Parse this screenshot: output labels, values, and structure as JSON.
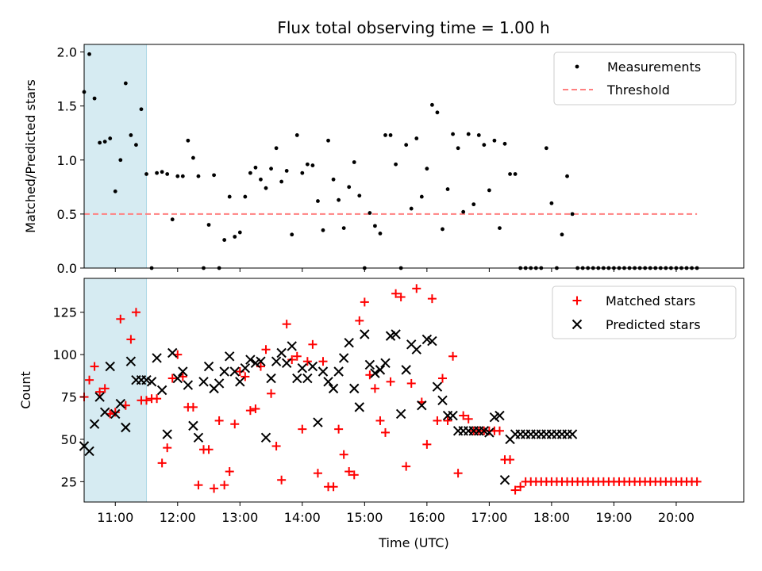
{
  "title": "Flux total observing time = 1.00 h",
  "colors": {
    "measurement": "#000000",
    "threshold": "#ff8080",
    "matched": "#ff0000",
    "predicted": "#000000",
    "highlight": "#add8e6"
  },
  "chart_data": [
    {
      "type": "scatter",
      "ylabel": "Matched/Predicted stars",
      "xlim": [
        "10:30",
        "21:05"
      ],
      "ylim": [
        0,
        2.07
      ],
      "yticks": [
        "0.0",
        "0.5",
        "1.0",
        "1.5",
        "2.0"
      ],
      "highlight_span": [
        "10:30",
        "11:30"
      ],
      "threshold": 0.5,
      "threshold_range": [
        "10:30",
        "20:20"
      ],
      "legend": {
        "position": "top-right",
        "entries": [
          "Measurements",
          "Threshold"
        ]
      },
      "series": [
        {
          "name": "Measurements",
          "x": [
            "10:30",
            "10:35",
            "10:40",
            "10:45",
            "10:50",
            "10:55",
            "11:00",
            "11:05",
            "11:10",
            "11:15",
            "11:20",
            "11:25",
            "11:30",
            "11:35",
            "11:40",
            "11:45",
            "11:50",
            "11:55",
            "12:00",
            "12:05",
            "12:10",
            "12:15",
            "12:20",
            "12:25",
            "12:30",
            "12:35",
            "12:40",
            "12:45",
            "12:50",
            "12:55",
            "13:00",
            "13:05",
            "13:10",
            "13:15",
            "13:20",
            "13:25",
            "13:30",
            "13:35",
            "13:40",
            "13:45",
            "13:50",
            "13:55",
            "14:00",
            "14:05",
            "14:10",
            "14:15",
            "14:20",
            "14:25",
            "14:30",
            "14:35",
            "14:40",
            "14:45",
            "14:50",
            "14:55",
            "15:00",
            "15:05",
            "15:10",
            "15:15",
            "15:20",
            "15:25",
            "15:30",
            "15:35",
            "15:40",
            "15:45",
            "15:50",
            "15:55",
            "16:00",
            "16:05",
            "16:10",
            "16:15",
            "16:20",
            "16:25",
            "16:30",
            "16:35",
            "16:40",
            "16:45",
            "16:50",
            "16:55",
            "17:00",
            "17:05",
            "17:10",
            "17:15",
            "17:20",
            "17:25",
            "17:30",
            "17:35",
            "17:40",
            "17:45",
            "17:50",
            "17:55",
            "18:00",
            "18:05",
            "18:10",
            "18:15",
            "18:20",
            "18:25",
            "18:30",
            "18:35",
            "18:40",
            "18:45",
            "18:50",
            "18:55",
            "19:00",
            "19:05",
            "19:10",
            "19:15",
            "19:20",
            "19:25",
            "19:30",
            "19:35",
            "19:40",
            "19:45",
            "19:50",
            "19:55",
            "20:00",
            "20:05",
            "20:10",
            "20:15",
            "20:20"
          ],
          "y": [
            1.63,
            1.98,
            1.57,
            1.16,
            1.17,
            1.2,
            0.71,
            1.0,
            1.71,
            1.23,
            1.14,
            1.47,
            0.87,
            0.0,
            0.88,
            0.89,
            0.87,
            0.45,
            0.85,
            0.85,
            1.18,
            1.02,
            0.85,
            0.0,
            0.4,
            0.86,
            0.0,
            0.26,
            0.66,
            0.29,
            0.33,
            0.66,
            0.88,
            0.93,
            0.82,
            0.74,
            0.92,
            1.11,
            0.8,
            0.9,
            0.31,
            1.23,
            0.88,
            0.96,
            0.95,
            0.62,
            0.35,
            1.18,
            0.82,
            0.63,
            0.37,
            0.75,
            0.98,
            0.67,
            0.0,
            0.51,
            0.39,
            0.32,
            1.23,
            1.23,
            0.96,
            0.0,
            1.14,
            0.55,
            1.2,
            0.66,
            0.92,
            1.51,
            1.44,
            0.36,
            0.73,
            1.24,
            1.11,
            0.52,
            1.24,
            0.59,
            1.23,
            1.14,
            0.72,
            1.18,
            0.37,
            1.15,
            0.87,
            0.87,
            0.0,
            0.0,
            0.0,
            0.0,
            0.0,
            1.11,
            0.6,
            0.0,
            0.31,
            0.85,
            0.5,
            0.0,
            0.0,
            0.0,
            0.0,
            0.0,
            0.0,
            0.0,
            0.0,
            0.0,
            0.0,
            0.0,
            0.0,
            0.0,
            0.0,
            0.0,
            0.0,
            0.0,
            0.0,
            0.0,
            0.0,
            0.0,
            0.0,
            0.0,
            0.0
          ]
        },
        {
          "name": "Threshold",
          "x": [
            "10:30",
            "20:20"
          ],
          "y": [
            0.5,
            0.5
          ]
        }
      ]
    },
    {
      "type": "scatter",
      "ylabel": "Count",
      "xlabel": "Time (UTC)",
      "xlim": [
        "10:30",
        "21:05"
      ],
      "ylim": [
        13,
        145
      ],
      "yticks": [
        "25",
        "50",
        "75",
        "100",
        "125"
      ],
      "xticks": [
        "11:00",
        "12:00",
        "13:00",
        "14:00",
        "15:00",
        "16:00",
        "17:00",
        "18:00",
        "19:00",
        "20:00"
      ],
      "highlight_span": [
        "10:30",
        "11:30"
      ],
      "legend": {
        "position": "top-right",
        "entries": [
          "Matched stars",
          "Predicted stars"
        ]
      },
      "series": [
        {
          "name": "Matched stars",
          "x": [
            "10:30",
            "10:35",
            "10:40",
            "10:45",
            "10:50",
            "10:55",
            "11:00",
            "11:05",
            "11:10",
            "11:15",
            "11:20",
            "11:25",
            "11:30",
            "11:35",
            "11:40",
            "11:45",
            "11:50",
            "11:55",
            "12:00",
            "12:05",
            "12:10",
            "12:15",
            "12:20",
            "12:25",
            "12:30",
            "12:35",
            "12:40",
            "12:45",
            "12:50",
            "12:55",
            "13:00",
            "13:05",
            "13:10",
            "13:15",
            "13:20",
            "13:25",
            "13:30",
            "13:35",
            "13:40",
            "13:45",
            "13:50",
            "13:55",
            "14:00",
            "14:05",
            "14:10",
            "14:15",
            "14:20",
            "14:25",
            "14:30",
            "14:35",
            "14:40",
            "14:45",
            "14:50",
            "14:55",
            "15:00",
            "15:05",
            "15:10",
            "15:15",
            "15:20",
            "15:25",
            "15:30",
            "15:35",
            "15:40",
            "15:45",
            "15:50",
            "15:55",
            "16:00",
            "16:05",
            "16:10",
            "16:15",
            "16:20",
            "16:25",
            "16:30",
            "16:35",
            "16:40",
            "16:45",
            "16:50",
            "16:55",
            "17:00",
            "17:05",
            "17:10",
            "17:15",
            "17:20",
            "17:25",
            "17:30",
            "17:35",
            "17:40",
            "17:45",
            "17:50",
            "17:55",
            "18:00",
            "18:05",
            "18:10",
            "18:15",
            "18:20",
            "18:25",
            "18:30",
            "18:35",
            "18:40",
            "18:45",
            "18:50",
            "18:55",
            "19:00",
            "19:05",
            "19:10",
            "19:15",
            "19:20",
            "19:25",
            "19:30",
            "19:35",
            "19:40",
            "19:45",
            "19:50",
            "19:55",
            "20:00",
            "20:05",
            "20:10",
            "20:15",
            "20:20"
          ],
          "y": [
            75,
            85,
            93,
            78,
            80,
            65,
            66,
            121,
            70,
            109,
            125,
            73,
            73,
            74,
            74,
            36,
            45,
            86,
            100,
            87,
            69,
            69,
            23,
            44,
            44,
            21,
            61,
            23,
            31,
            59,
            90,
            87,
            67,
            68,
            93,
            103,
            77,
            46,
            26,
            118,
            97,
            99,
            56,
            96,
            106,
            30,
            96,
            22,
            22,
            56,
            41,
            31,
            29,
            120,
            131,
            88,
            80,
            61,
            54,
            84,
            136,
            134,
            34,
            83,
            139,
            72,
            47,
            133,
            61,
            86,
            61,
            99,
            30,
            64,
            62,
            55,
            55,
            55,
            55,
            55,
            55,
            38,
            38,
            20,
            22,
            25,
            25,
            25,
            25,
            25,
            25,
            25,
            25,
            25,
            25,
            25,
            25,
            25,
            25,
            25,
            25,
            25,
            25,
            25,
            25,
            25,
            25,
            25,
            25,
            25,
            25,
            25,
            25,
            25,
            25,
            25,
            25,
            25,
            25
          ]
        },
        {
          "name": "Predicted stars",
          "x": [
            "10:30",
            "10:35",
            "10:40",
            "10:45",
            "10:50",
            "10:55",
            "11:00",
            "11:05",
            "11:10",
            "11:15",
            "11:20",
            "11:25",
            "11:30",
            "11:35",
            "11:40",
            "11:45",
            "11:50",
            "11:55",
            "12:00",
            "12:05",
            "12:10",
            "12:15",
            "12:20",
            "12:25",
            "12:30",
            "12:35",
            "12:40",
            "12:45",
            "12:50",
            "12:55",
            "13:00",
            "13:05",
            "13:10",
            "13:15",
            "13:20",
            "13:25",
            "13:30",
            "13:35",
            "13:40",
            "13:45",
            "13:50",
            "13:55",
            "14:00",
            "14:05",
            "14:10",
            "14:15",
            "14:20",
            "14:25",
            "14:30",
            "14:35",
            "14:40",
            "14:45",
            "14:50",
            "14:55",
            "15:00",
            "15:05",
            "15:10",
            "15:15",
            "15:20",
            "15:25",
            "15:30",
            "15:35",
            "15:40",
            "15:45",
            "15:50",
            "15:55",
            "16:00",
            "16:05",
            "16:10",
            "16:15",
            "16:20",
            "16:25",
            "16:30",
            "16:35",
            "16:40",
            "16:45",
            "16:50",
            "16:55",
            "17:00",
            "17:05",
            "17:10",
            "17:15",
            "17:20",
            "17:25",
            "17:30",
            "17:35",
            "17:40",
            "17:45",
            "17:50",
            "17:55",
            "18:00",
            "18:05",
            "18:10",
            "18:15",
            "18:20"
          ],
          "y": [
            46,
            43,
            59,
            75,
            66,
            93,
            65,
            71,
            57,
            96,
            85,
            85,
            85,
            84,
            98,
            79,
            53,
            101,
            86,
            90,
            82,
            58,
            51,
            84,
            93,
            80,
            83,
            90,
            99,
            90,
            84,
            92,
            97,
            95,
            96,
            51,
            86,
            96,
            101,
            95,
            105,
            86,
            92,
            86,
            93,
            60,
            90,
            84,
            80,
            90,
            98,
            107,
            80,
            69,
            112,
            94,
            89,
            91,
            95,
            111,
            112,
            65,
            91,
            106,
            103,
            70,
            109,
            108,
            81,
            73,
            64,
            64,
            55,
            55,
            55,
            55,
            55,
            55,
            54,
            63,
            64,
            26,
            50,
            53,
            53,
            53,
            53,
            53,
            53,
            53,
            53,
            53,
            53,
            53,
            53
          ]
        }
      ]
    }
  ]
}
